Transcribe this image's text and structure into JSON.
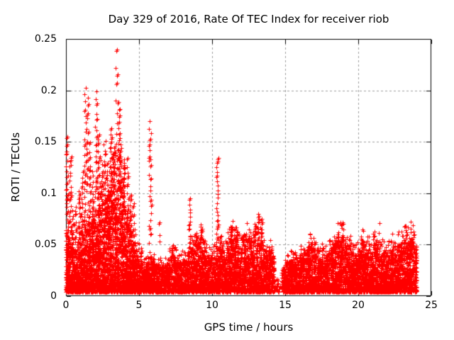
{
  "page": {
    "background": "#ffffff",
    "text_color": "#000000"
  },
  "chart_data": {
    "type": "scatter",
    "title": "Day 329 of 2016, Rate Of TEC Index for receiver riob",
    "xlabel": "GPS time / hours",
    "ylabel": "ROTI / TECUs",
    "xlim": [
      0,
      25
    ],
    "ylim": [
      0,
      0.25
    ],
    "xticks": [
      0,
      5,
      10,
      15,
      20,
      25
    ],
    "xtick_labels": [
      "0",
      "5",
      "10",
      "15",
      "20",
      "25"
    ],
    "yticks": [
      0,
      0.05,
      0.1,
      0.15,
      0.2,
      0.25
    ],
    "ytick_labels": [
      "0",
      "0.05",
      "0.1",
      "0.15",
      "0.2",
      "0.25"
    ],
    "grid": true,
    "legend": "none",
    "marker": "plus",
    "marker_color": "#ff0000",
    "grid_color": "#9c9c9c",
    "axis_color": "#000000",
    "data_start_hour": 0.0,
    "data_end_hour": 24.0,
    "description": "Dense scatter of ROTI values vs GPS time; strong disturbed interval 0-5 h (peaks to 0.24 TECU near 3.5 h), isolated spike columns near 5.75 h (0.17) and 10.35 h (0.135), quiet band ~0.005-0.05 from 15-24 h, data gap near 14.3-14.7 h",
    "baseline": {
      "bin_width": 0.25,
      "start_hour": 0.0,
      "y_floor": 0.004,
      "band_top": [
        0.055,
        0.05,
        0.045,
        0.05,
        0.06,
        0.065,
        0.07,
        0.075,
        0.08,
        0.085,
        0.09,
        0.095,
        0.1,
        0.11,
        0.11,
        0.1,
        0.08,
        0.065,
        0.05,
        0.04,
        0.032,
        0.03,
        0.032,
        0.035,
        0.03,
        0.03,
        0.028,
        0.03,
        0.035,
        0.038,
        0.035,
        0.033,
        0.035,
        0.04,
        0.045,
        0.05,
        0.052,
        0.045,
        0.04,
        0.038,
        0.04,
        0.045,
        0.045,
        0.042,
        0.05,
        0.055,
        0.05,
        0.048,
        0.05,
        0.055,
        0.05,
        0.048,
        0.05,
        0.05,
        0.045,
        0.042,
        0.038,
        0.02,
        0.015,
        0.028,
        0.032,
        0.034,
        0.035,
        0.035,
        0.038,
        0.042,
        0.045,
        0.047,
        0.04,
        0.036,
        0.038,
        0.04,
        0.044,
        0.05,
        0.053,
        0.055,
        0.05,
        0.048,
        0.042,
        0.04,
        0.044,
        0.05,
        0.047,
        0.045,
        0.05,
        0.053,
        0.042,
        0.04,
        0.042,
        0.045,
        0.047,
        0.05,
        0.052,
        0.05,
        0.055,
        0.048
      ],
      "points_per_bin": [
        140,
        130,
        120,
        130,
        150,
        150,
        160,
        160,
        170,
        170,
        170,
        170,
        180,
        180,
        180,
        170,
        160,
        150,
        140,
        120,
        100,
        95,
        95,
        100,
        95,
        95,
        90,
        90,
        95,
        95,
        95,
        90,
        95,
        100,
        105,
        110,
        110,
        105,
        100,
        95,
        100,
        105,
        105,
        100,
        110,
        110,
        110,
        105,
        110,
        110,
        110,
        105,
        110,
        110,
        100,
        100,
        90,
        15,
        8,
        70,
        100,
        100,
        100,
        100,
        105,
        105,
        110,
        110,
        105,
        100,
        100,
        105,
        110,
        110,
        115,
        115,
        110,
        110,
        105,
        105,
        110,
        110,
        110,
        110,
        110,
        110,
        105,
        105,
        105,
        105,
        110,
        110,
        110,
        110,
        115,
        110
      ]
    },
    "spikes": [
      [
        0.05,
        0.09,
        0.155,
        12
      ],
      [
        0.1,
        0.055,
        0.1,
        12
      ],
      [
        0.3,
        0.06,
        0.138,
        16
      ],
      [
        0.45,
        0.05,
        0.085,
        8
      ],
      [
        0.65,
        0.05,
        0.09,
        8
      ],
      [
        0.9,
        0.06,
        0.105,
        10
      ],
      [
        1.1,
        0.06,
        0.125,
        12
      ],
      [
        1.3,
        0.08,
        0.205,
        18
      ],
      [
        1.45,
        0.1,
        0.195,
        14
      ],
      [
        1.6,
        0.07,
        0.15,
        12
      ],
      [
        1.8,
        0.06,
        0.125,
        12
      ],
      [
        2.05,
        0.1,
        0.2,
        16
      ],
      [
        2.2,
        0.08,
        0.16,
        14
      ],
      [
        2.45,
        0.07,
        0.135,
        12
      ],
      [
        2.65,
        0.09,
        0.155,
        12
      ],
      [
        2.85,
        0.08,
        0.13,
        10
      ],
      [
        3.05,
        0.1,
        0.165,
        14
      ],
      [
        3.25,
        0.1,
        0.145,
        14
      ],
      [
        3.45,
        0.13,
        0.242,
        10
      ],
      [
        3.6,
        0.11,
        0.19,
        14
      ],
      [
        3.75,
        0.1,
        0.155,
        12
      ],
      [
        3.95,
        0.08,
        0.135,
        12
      ],
      [
        4.2,
        0.06,
        0.135,
        12
      ],
      [
        4.4,
        0.05,
        0.1,
        10
      ],
      [
        4.6,
        0.04,
        0.095,
        8
      ],
      [
        5.15,
        0.03,
        0.05,
        5
      ],
      [
        5.75,
        0.05,
        0.172,
        22
      ],
      [
        6.4,
        0.05,
        0.073,
        3
      ],
      [
        7.2,
        0.035,
        0.05,
        5
      ],
      [
        8.45,
        0.045,
        0.095,
        12
      ],
      [
        8.9,
        0.045,
        0.062,
        8
      ],
      [
        9.2,
        0.05,
        0.072,
        8
      ],
      [
        10.35,
        0.05,
        0.136,
        20
      ],
      [
        10.6,
        0.04,
        0.06,
        6
      ],
      [
        11.3,
        0.05,
        0.068,
        8
      ],
      [
        11.65,
        0.05,
        0.067,
        8
      ],
      [
        12.1,
        0.05,
        0.06,
        6
      ],
      [
        12.55,
        0.045,
        0.06,
        6
      ],
      [
        12.9,
        0.05,
        0.072,
        8
      ],
      [
        13.15,
        0.05,
        0.082,
        10
      ],
      [
        13.35,
        0.05,
        0.075,
        8
      ],
      [
        14.05,
        0.035,
        0.05,
        4
      ],
      [
        16.55,
        0.04,
        0.048,
        5
      ],
      [
        16.8,
        0.042,
        0.052,
        5
      ],
      [
        18.4,
        0.045,
        0.052,
        5
      ],
      [
        18.85,
        0.048,
        0.058,
        6
      ],
      [
        19.45,
        0.045,
        0.06,
        4
      ],
      [
        20.3,
        0.045,
        0.052,
        5
      ],
      [
        21.2,
        0.044,
        0.048,
        4
      ],
      [
        23.3,
        0.058,
        0.064,
        2
      ],
      [
        23.55,
        0.045,
        0.057,
        6
      ]
    ]
  }
}
